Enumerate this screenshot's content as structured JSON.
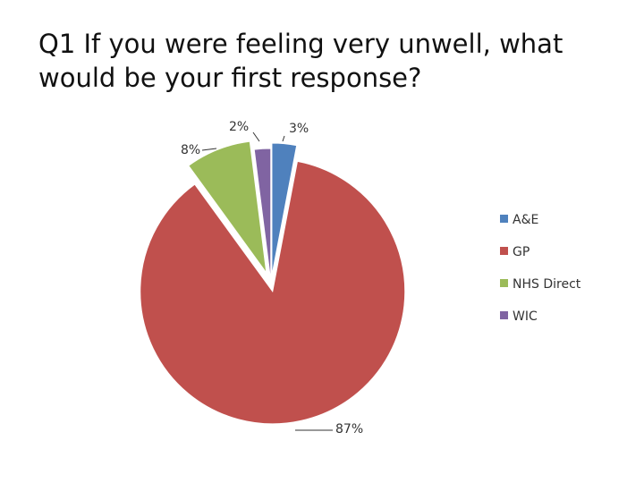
{
  "chart_data": {
    "type": "pie",
    "title": "Q1  If you were feeling very unwell, what\nwould be your first response?",
    "legend_position": "right",
    "series": [
      {
        "label": "A&E",
        "value": 3,
        "display": "3%",
        "color": "#4f81bd"
      },
      {
        "label": "GP",
        "value": 87,
        "display": "87%",
        "color": "#c0504d"
      },
      {
        "label": "NHS Direct",
        "value": 8,
        "display": "8%",
        "color": "#9bbb59"
      },
      {
        "label": "WIC",
        "value": 2,
        "display": "2%",
        "color": "#8064a2"
      }
    ]
  }
}
